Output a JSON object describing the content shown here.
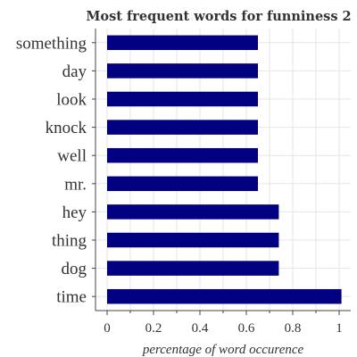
{
  "chart_data": {
    "type": "bar",
    "orientation": "horizontal",
    "title": "Most frequent words for funniness 2",
    "xlabel": "percentage of word occurence",
    "ylabel": "",
    "xlim": [
      0,
      1.02
    ],
    "xticks": [
      "0",
      "0.2",
      "0.4",
      "0.6",
      "0.8",
      "1"
    ],
    "xtick_values": [
      0,
      0.2,
      0.4,
      0.6,
      0.8,
      1.0
    ],
    "grid": true,
    "bar_color": "#000080",
    "categories": [
      "time",
      "dog",
      "thing",
      "hey",
      "mr.",
      "well",
      "knock",
      "look",
      "day",
      "something"
    ],
    "values": [
      1.01,
      0.74,
      0.74,
      0.74,
      0.65,
      0.65,
      0.65,
      0.65,
      0.65,
      0.65
    ]
  }
}
